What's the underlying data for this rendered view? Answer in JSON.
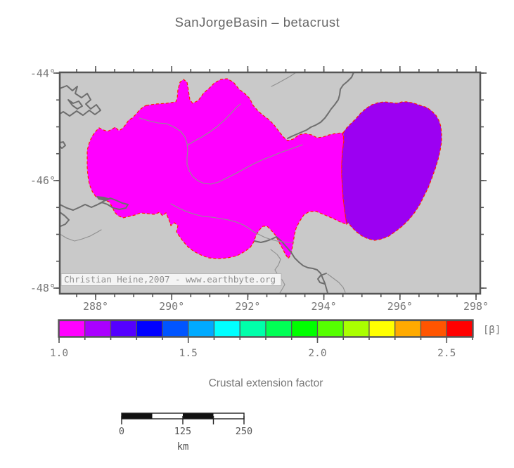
{
  "title": "SanJorgeBasin – betacrust",
  "map": {
    "x_tick_labels": [
      "288°",
      "290°",
      "292°",
      "294°",
      "296°",
      "298°"
    ],
    "y_tick_labels": [
      "-44°",
      "-46°",
      "-48°"
    ],
    "watermark": "Christian Heine,2007 - www.earthbyte.org",
    "background_color": "#c9c9c9",
    "coastline_color": "#6e6e6e",
    "region_outline_color": "#ff2200",
    "regions": [
      {
        "id": "basin-main",
        "color": "#ff00ff"
      },
      {
        "id": "basin-east-lobe",
        "color": "#9c00f2"
      }
    ]
  },
  "colorbar": {
    "unit_label": "[β]",
    "caption": "Crustal extension factor",
    "tick_labels": [
      "1.0",
      "1.5",
      "2.0",
      "2.5"
    ],
    "range_min": 1.0,
    "range_max": 2.6,
    "cell_step": 0.1,
    "cell_colors": [
      "#ff00ff",
      "#aa00ff",
      "#5500ff",
      "#0000ff",
      "#0055ff",
      "#00aaff",
      "#00ffff",
      "#00ffaa",
      "#00ff55",
      "#00ff00",
      "#55ff00",
      "#aaff00",
      "#ffff00",
      "#ffaa00",
      "#ff5500",
      "#ff0000"
    ]
  },
  "scalebar": {
    "tick_labels": [
      "0",
      "125",
      "250"
    ],
    "unit": "km"
  }
}
